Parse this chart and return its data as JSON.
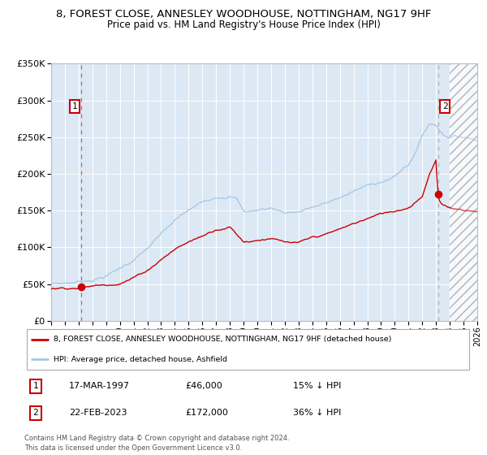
{
  "title": "8, FOREST CLOSE, ANNESLEY WOODHOUSE, NOTTINGHAM, NG17 9HF",
  "subtitle": "Price paid vs. HM Land Registry's House Price Index (HPI)",
  "hpi_label": "HPI: Average price, detached house, Ashfield",
  "property_label": "8, FOREST CLOSE, ANNESLEY WOODHOUSE, NOTTINGHAM, NG17 9HF (detached house)",
  "legend_footnote": "Contains HM Land Registry data © Crown copyright and database right 2024.\nThis data is licensed under the Open Government Licence v3.0.",
  "sale1_date": "17-MAR-1997",
  "sale1_price": 46000,
  "sale1_hpi_pct": "15% ↓ HPI",
  "sale2_date": "22-FEB-2023",
  "sale2_price": 172000,
  "sale2_hpi_pct": "36% ↓ HPI",
  "sale1_year": 1997.21,
  "sale2_year": 2023.14,
  "hpi_color": "#a8c8e8",
  "property_color": "#cc0000",
  "background_color": "#dce9f5",
  "grid_color": "#ffffff",
  "ylim": [
    0,
    350000
  ],
  "xlim_start": 1995.0,
  "xlim_end": 2026.0,
  "future_start": 2024.0,
  "hpi_keypoints_x": [
    1995.0,
    1996.0,
    1997.0,
    1998.0,
    1999.0,
    2000.0,
    2001.0,
    2002.0,
    2003.0,
    2004.0,
    2005.0,
    2006.0,
    2007.0,
    2008.0,
    2008.5,
    2009.0,
    2010.0,
    2011.0,
    2012.0,
    2013.0,
    2014.0,
    2015.0,
    2016.0,
    2017.0,
    2018.0,
    2019.0,
    2020.0,
    2021.0,
    2021.5,
    2022.0,
    2022.5,
    2023.0,
    2023.5,
    2024.0,
    2025.0,
    2026.0
  ],
  "hpi_keypoints_y": [
    50000,
    51000,
    53000,
    57000,
    63000,
    73000,
    85000,
    100000,
    118000,
    135000,
    148000,
    158000,
    168000,
    172000,
    168000,
    150000,
    152000,
    155000,
    150000,
    152000,
    158000,
    162000,
    170000,
    178000,
    185000,
    192000,
    198000,
    215000,
    230000,
    255000,
    270000,
    270000,
    258000,
    255000,
    255000,
    252000
  ],
  "prop_keypoints_x": [
    1995.0,
    1996.0,
    1997.21,
    1998.0,
    1999.0,
    2000.0,
    2001.0,
    2002.0,
    2003.0,
    2004.0,
    2005.0,
    2006.0,
    2007.0,
    2008.0,
    2009.0,
    2010.0,
    2011.0,
    2012.0,
    2013.0,
    2014.0,
    2015.0,
    2016.0,
    2017.0,
    2018.0,
    2019.0,
    2020.0,
    2021.0,
    2022.0,
    2022.5,
    2023.0,
    2023.14,
    2023.5,
    2024.0,
    2025.0,
    2026.0
  ],
  "prop_keypoints_y": [
    43000,
    44500,
    46000,
    48000,
    50000,
    54000,
    62000,
    72000,
    88000,
    102000,
    112000,
    120000,
    130000,
    135000,
    115000,
    118000,
    122000,
    115000,
    112000,
    118000,
    122000,
    128000,
    135000,
    142000,
    148000,
    152000,
    158000,
    175000,
    205000,
    225000,
    172000,
    162000,
    158000,
    157000,
    155000
  ]
}
